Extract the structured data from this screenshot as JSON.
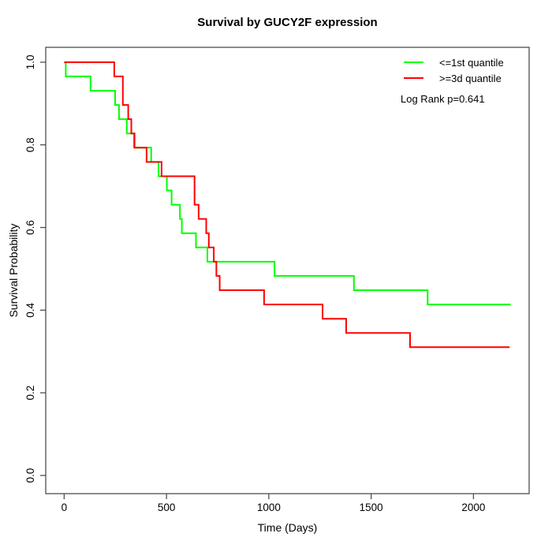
{
  "chart_data": {
    "type": "line",
    "subtype": "kaplan_meier_step",
    "title": "Survival by GUCY2F expression",
    "xlabel": "Time (Days)",
    "ylabel": "Survival Probability",
    "annotation": "Log Rank p=0.641",
    "grid": false,
    "legend_position": "top-right",
    "x_range": [
      -90,
      2272
    ],
    "y_range": [
      -0.044,
      1.036
    ],
    "x_ticks": [
      0,
      500,
      1000,
      1500,
      2000
    ],
    "x_tick_labels": [
      "0",
      "500",
      "1000",
      "1500",
      "2000"
    ],
    "y_ticks": [
      0.0,
      0.2,
      0.4,
      0.6,
      0.8,
      1.0
    ],
    "y_tick_labels": [
      "0.0",
      "0.2",
      "0.4",
      "0.6",
      "0.8",
      "1.0"
    ],
    "axis_color": "#4d4d4d",
    "line_width": 2,
    "series": [
      {
        "name": "<=1st quantile",
        "color": "#00ff00",
        "steps": [
          [
            0,
            1.0
          ],
          [
            8,
            0.9655
          ],
          [
            129,
            0.931
          ],
          [
            249,
            0.8966
          ],
          [
            268,
            0.8621
          ],
          [
            306,
            0.8276
          ],
          [
            341,
            0.7931
          ],
          [
            425,
            0.7586
          ],
          [
            461,
            0.7241
          ],
          [
            502,
            0.6897
          ],
          [
            525,
            0.6552
          ],
          [
            566,
            0.6207
          ],
          [
            575,
            0.5862
          ],
          [
            644,
            0.5517
          ],
          [
            700,
            0.5172
          ],
          [
            1028,
            0.4828
          ],
          [
            1416,
            0.4483
          ],
          [
            1776,
            0.4138
          ]
        ],
        "end_time": 2182
      },
      {
        "name": ">=3d quantile",
        "color": "#ff0000",
        "steps": [
          [
            0,
            1.0
          ],
          [
            245,
            0.9655
          ],
          [
            287,
            0.8966
          ],
          [
            313,
            0.8621
          ],
          [
            328,
            0.8276
          ],
          [
            344,
            0.7931
          ],
          [
            403,
            0.7586
          ],
          [
            476,
            0.7241
          ],
          [
            637,
            0.6552
          ],
          [
            657,
            0.6207
          ],
          [
            694,
            0.5862
          ],
          [
            707,
            0.5517
          ],
          [
            731,
            0.5172
          ],
          [
            744,
            0.4828
          ],
          [
            760,
            0.4483
          ],
          [
            977,
            0.4138
          ],
          [
            1263,
            0.3793
          ],
          [
            1378,
            0.3448
          ],
          [
            1690,
            0.3103
          ]
        ],
        "end_time": 2177
      }
    ]
  }
}
